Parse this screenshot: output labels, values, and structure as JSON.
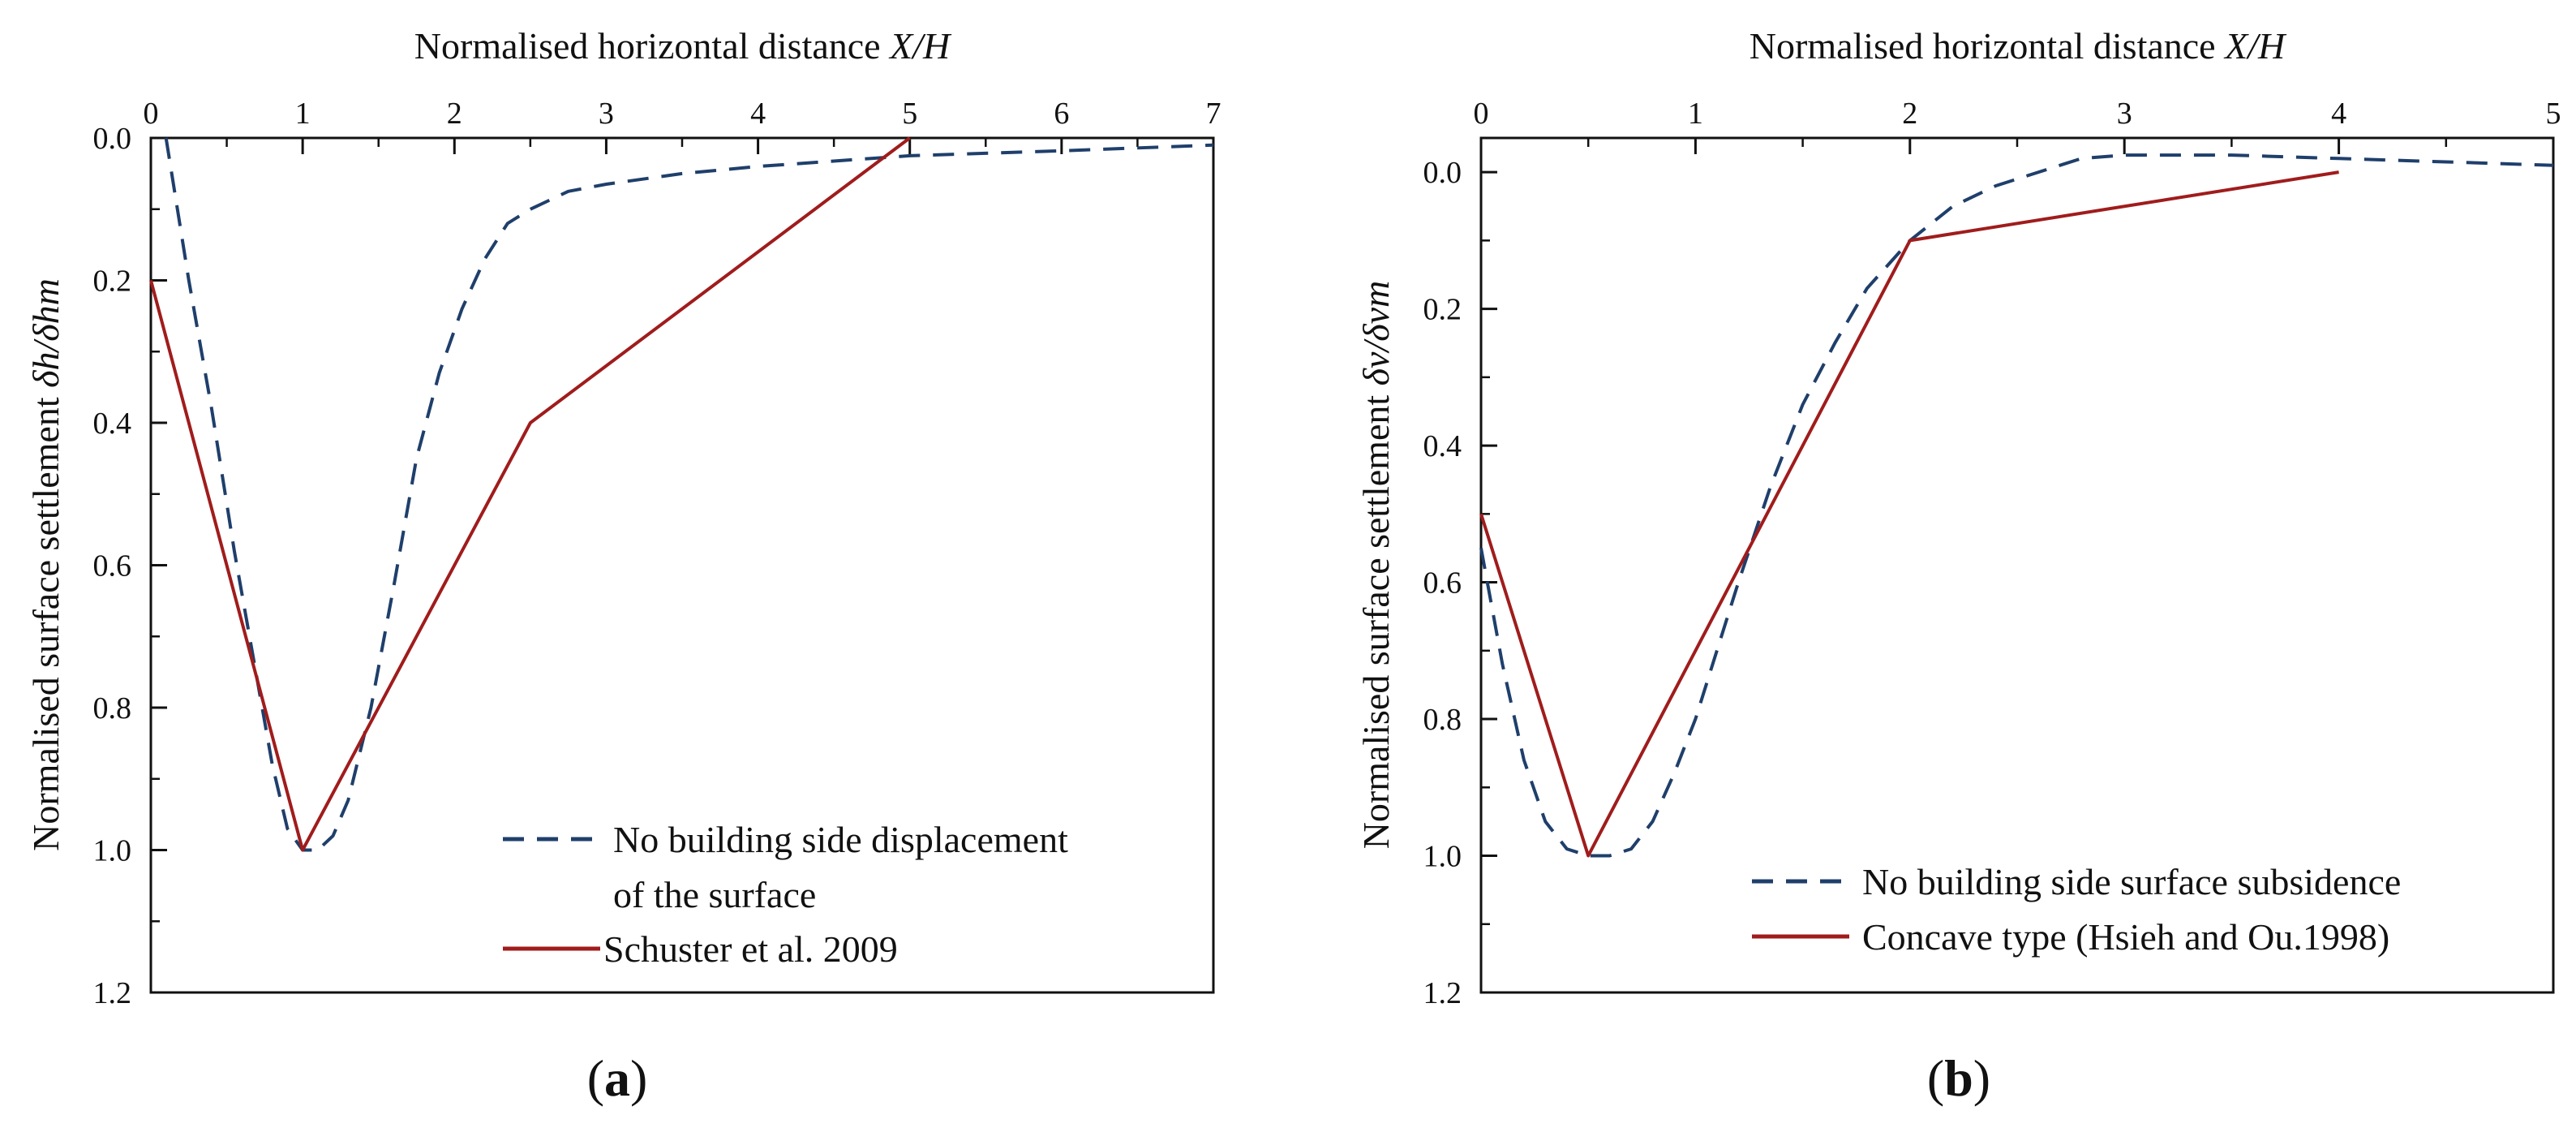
{
  "chart_data": [
    {
      "type": "line",
      "panel_label": "a",
      "xlabel": "Normalised horizontal distance X/H",
      "xlabel_parts": {
        "text": "Normalised horizontal distance ",
        "var": "X/H"
      },
      "ylabel": "Normalised surface settlement δh/δhm",
      "ylabel_parts": {
        "text": "Normalised surface settlement ",
        "var": "δh/δhm"
      },
      "x_axis_position": "top",
      "y_inverted": true,
      "xlim": [
        0,
        7
      ],
      "ylim": [
        0,
        1.2
      ],
      "x_ticks": [
        "0",
        "1",
        "2",
        "3",
        "4",
        "5",
        "6",
        "7"
      ],
      "y_ticks": [
        "0.0",
        "0.2",
        "0.4",
        "0.6",
        "0.8",
        "1.0",
        "1.2"
      ],
      "x_tick_values": [
        0,
        1,
        2,
        3,
        4,
        5,
        6,
        7
      ],
      "y_tick_values": [
        0,
        0.2,
        0.4,
        0.6,
        0.8,
        1.0,
        1.2
      ],
      "legend_position": "bottom-right",
      "series": [
        {
          "name": "No building side displacement of the surface",
          "legend_lines": [
            "No building side displacement",
            "of the surface"
          ],
          "style": "dashed",
          "color": "#1f3f6b",
          "x": [
            0.1,
            0.25,
            0.4,
            0.55,
            0.7,
            0.8,
            0.9,
            1.0,
            1.1,
            1.2,
            1.3,
            1.45,
            1.6,
            1.75,
            1.9,
            2.05,
            2.2,
            2.35,
            2.5,
            2.75,
            3.0,
            3.5,
            4.0,
            5.0,
            6.0,
            7.0
          ],
          "y": [
            0.0,
            0.2,
            0.38,
            0.58,
            0.76,
            0.88,
            0.97,
            1.0,
            1.0,
            0.98,
            0.93,
            0.8,
            0.63,
            0.45,
            0.33,
            0.24,
            0.17,
            0.12,
            0.1,
            0.075,
            0.065,
            0.05,
            0.04,
            0.025,
            0.018,
            0.01
          ]
        },
        {
          "name": "Schuster et al. 2009",
          "legend_lines": [
            "Schuster et al. 2009"
          ],
          "style": "solid",
          "color": "#a01c1c",
          "x": [
            0,
            1,
            2.5,
            5
          ],
          "y": [
            0.2,
            1.0,
            0.4,
            0.0
          ]
        }
      ]
    },
    {
      "type": "line",
      "panel_label": "b",
      "xlabel": "Normalised horizontal distance X/H",
      "xlabel_parts": {
        "text": "Normalised horizontal distance ",
        "var": "X/H"
      },
      "ylabel": "Normalised surface settlement δv/δvm",
      "ylabel_parts": {
        "text": "Normalised surface settlement ",
        "var": "δv/δvm"
      },
      "x_axis_position": "top",
      "y_inverted": true,
      "xlim": [
        0,
        5
      ],
      "ylim": [
        -0.05,
        1.2
      ],
      "x_ticks": [
        "0",
        "1",
        "2",
        "3",
        "4",
        "5"
      ],
      "y_ticks": [
        "0.0",
        "0.2",
        "0.4",
        "0.6",
        "0.8",
        "1.0",
        "1.2"
      ],
      "x_tick_values": [
        0,
        1,
        2,
        3,
        4,
        5
      ],
      "y_tick_values": [
        0,
        0.2,
        0.4,
        0.6,
        0.8,
        1.0,
        1.2
      ],
      "legend_position": "bottom-right",
      "series": [
        {
          "name": "No building side surface subsidence",
          "legend_lines": [
            "No building side surface subsidence"
          ],
          "style": "dashed",
          "color": "#1f3f6b",
          "x": [
            0,
            0.1,
            0.2,
            0.3,
            0.4,
            0.5,
            0.6,
            0.7,
            0.8,
            0.9,
            1.0,
            1.1,
            1.2,
            1.35,
            1.5,
            1.65,
            1.8,
            2.0,
            2.2,
            2.4,
            2.6,
            2.8,
            3.0,
            3.5,
            4.0,
            4.5,
            5.0
          ],
          "y": [
            0.55,
            0.72,
            0.86,
            0.95,
            0.99,
            1.0,
            1.0,
            0.99,
            0.95,
            0.88,
            0.8,
            0.7,
            0.6,
            0.46,
            0.34,
            0.25,
            0.17,
            0.1,
            0.05,
            0.02,
            0.0,
            -0.02,
            -0.025,
            -0.025,
            -0.02,
            -0.015,
            -0.01
          ]
        },
        {
          "name": "Concave type (Hsieh and Ou.1998)",
          "legend_lines": [
            "Concave type (Hsieh and Ou.1998)"
          ],
          "style": "solid",
          "color": "#a01c1c",
          "x": [
            0,
            0.5,
            2,
            4
          ],
          "y": [
            0.5,
            1.0,
            0.1,
            0.0
          ]
        }
      ]
    }
  ]
}
